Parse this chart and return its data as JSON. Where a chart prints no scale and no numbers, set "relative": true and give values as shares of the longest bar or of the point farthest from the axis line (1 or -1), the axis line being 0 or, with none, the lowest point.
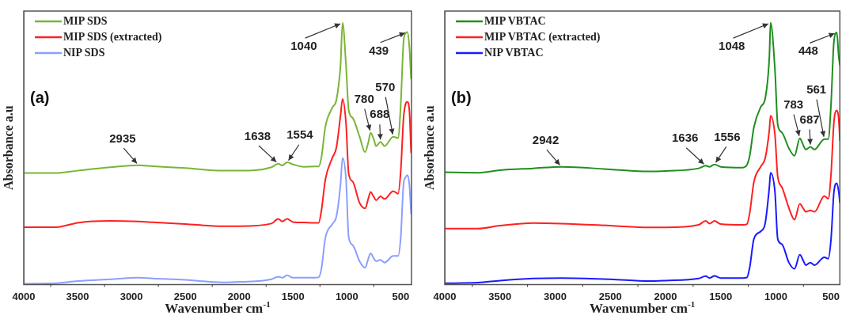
{
  "chart_data": [
    {
      "type": "line",
      "relative": true,
      "xlabel": "Wavenumber cm$^{-1}$",
      "ylabel": "Absorbance a.u",
      "xlim": [
        4000,
        400
      ],
      "xticks": [
        4000,
        3500,
        3000,
        2500,
        2000,
        1500,
        1000,
        500
      ],
      "legend": "top left",
      "grid": false,
      "tick_labels": "x",
      "marker": "none",
      "line_style": "solid",
      "x": [
        4000,
        3700,
        3500,
        3200,
        2935,
        2800,
        2500,
        2150,
        2000,
        1700,
        1638,
        1600,
        1554,
        1500,
        1400,
        1300,
        1262,
        1237,
        1199,
        1135,
        1097,
        1059,
        1040,
        1008,
        983,
        945,
        882,
        831,
        800,
        780,
        750,
        729,
        688,
        650,
        570,
        525,
        500,
        474,
        455,
        439,
        420,
        404
      ],
      "series": [
        {
          "name": "MIP SDS",
          "color": "#7ab535",
          "values": [
            0.426,
            0.426,
            0.435,
            0.448,
            0.456,
            0.452,
            0.445,
            0.435,
            0.435,
            0.448,
            0.462,
            0.455,
            0.467,
            0.459,
            0.45,
            0.451,
            0.451,
            0.484,
            0.605,
            0.676,
            0.706,
            0.838,
            1,
            0.838,
            0.666,
            0.636,
            0.565,
            0.506,
            0.545,
            0.58,
            0.555,
            0.529,
            0.545,
            0.529,
            0.565,
            0.56,
            0.686,
            0.929,
            0.96,
            0.965,
            0.909,
            0.787
          ]
        },
        {
          "name": "MIP SDS (extracted)",
          "color": "#ff2020",
          "values": [
            0.219,
            0.219,
            0.236,
            0.243,
            0.241,
            0.238,
            0.231,
            0.223,
            0.223,
            0.233,
            0.251,
            0.241,
            0.251,
            0.239,
            0.237,
            0.236,
            0.236,
            0.281,
            0.403,
            0.484,
            0.524,
            0.646,
            0.709,
            0.615,
            0.423,
            0.393,
            0.312,
            0.291,
            0.33,
            0.354,
            0.335,
            0.322,
            0.337,
            0.327,
            0.357,
            0.347,
            0.433,
            0.636,
            0.69,
            0.698,
            0.666,
            0.504
          ]
        },
        {
          "name": "NIP SDS",
          "color": "#8c9eff",
          "values": [
            0.003,
            0.005,
            0.013,
            0.02,
            0.026,
            0.023,
            0.018,
            0.008,
            0.01,
            0.02,
            0.03,
            0.026,
            0.035,
            0.026,
            0.026,
            0.026,
            0.028,
            0.059,
            0.18,
            0.231,
            0.261,
            0.383,
            0.484,
            0.403,
            0.18,
            0.15,
            0.089,
            0.064,
            0.1,
            0.119,
            0.1,
            0.089,
            0.094,
            0.084,
            0.109,
            0.109,
            0.18,
            0.383,
            0.41,
            0.418,
            0.383,
            0.271
          ]
        }
      ],
      "annotations": [
        "(a)",
        {
          "text": "1040",
          "x": 1040,
          "y": 1
        },
        {
          "text": "439",
          "x": 439,
          "y": 0.965
        },
        {
          "text": "780",
          "x": 780,
          "y": 0.58
        },
        {
          "text": "688",
          "x": 688,
          "y": 0.545
        },
        {
          "text": "570",
          "x": 570,
          "y": 0.565
        },
        {
          "text": "1638",
          "x": 1638,
          "y": 0.462
        },
        {
          "text": "1554",
          "x": 1554,
          "y": 0.467
        },
        {
          "text": "2935",
          "x": 2935,
          "y": 0.456
        }
      ]
    },
    {
      "type": "line",
      "relative": true,
      "xlabel": "Wavenumber cm$^{-1}$",
      "ylabel": "Absorbance a.u",
      "xlim": [
        4000,
        420
      ],
      "xticks": [
        4000,
        3500,
        3000,
        2500,
        2000,
        1500,
        1000,
        500
      ],
      "legend": "top left",
      "grid": false,
      "tick_labels": "x",
      "marker": "none",
      "line_style": "solid",
      "x": [
        4000,
        3700,
        3500,
        3200,
        2942,
        2500,
        2150,
        2000,
        1700,
        1636,
        1600,
        1556,
        1500,
        1300,
        1262,
        1237,
        1199,
        1135,
        1097,
        1059,
        1048,
        1008,
        983,
        945,
        882,
        831,
        783,
        750,
        729,
        687,
        650,
        561,
        525,
        500,
        474,
        448,
        430,
        420
      ],
      "series": [
        {
          "name": "MIP VBTAC",
          "color": "#1f8f1f",
          "values": [
            0.429,
            0.427,
            0.437,
            0.444,
            0.45,
            0.44,
            0.432,
            0.434,
            0.444,
            0.454,
            0.45,
            0.459,
            0.45,
            0.447,
            0.457,
            0.492,
            0.601,
            0.68,
            0.71,
            0.869,
            1,
            0.819,
            0.611,
            0.581,
            0.521,
            0.492,
            0.559,
            0.531,
            0.516,
            0.526,
            0.516,
            0.556,
            0.556,
            0.69,
            0.928,
            0.963,
            0.869,
            0.839
          ]
        },
        {
          "name": "MIP VBTAC (extracted)",
          "color": "#ff2020",
          "values": [
            0.214,
            0.214,
            0.225,
            0.235,
            0.233,
            0.225,
            0.218,
            0.218,
            0.228,
            0.243,
            0.233,
            0.243,
            0.231,
            0.228,
            0.231,
            0.273,
            0.392,
            0.452,
            0.482,
            0.591,
            0.645,
            0.571,
            0.412,
            0.372,
            0.293,
            0.248,
            0.308,
            0.29,
            0.278,
            0.283,
            0.278,
            0.338,
            0.328,
            0.422,
            0.621,
            0.665,
            0.631,
            0.551
          ]
        },
        {
          "name": "NIP VBTAC",
          "color": "#1a1aff",
          "values": [
            0.005,
            0.007,
            0.015,
            0.023,
            0.025,
            0.02,
            0.013,
            0.015,
            0.023,
            0.032,
            0.025,
            0.033,
            0.025,
            0.025,
            0.027,
            0.065,
            0.174,
            0.204,
            0.233,
            0.372,
            0.427,
            0.353,
            0.174,
            0.154,
            0.084,
            0.06,
            0.114,
            0.09,
            0.074,
            0.084,
            0.074,
            0.104,
            0.099,
            0.174,
            0.353,
            0.387,
            0.353,
            0.313
          ]
        }
      ],
      "annotations": [
        "(b)",
        {
          "text": "1048",
          "x": 1048,
          "y": 1
        },
        {
          "text": "448",
          "x": 448,
          "y": 0.963
        },
        {
          "text": "783",
          "x": 783,
          "y": 0.559
        },
        {
          "text": "687",
          "x": 687,
          "y": 0.526
        },
        {
          "text": "561",
          "x": 561,
          "y": 0.556
        },
        {
          "text": "1636",
          "x": 1636,
          "y": 0.454
        },
        {
          "text": "1556",
          "x": 1556,
          "y": 0.459
        },
        {
          "text": "2942",
          "x": 2942,
          "y": 0.45
        }
      ]
    }
  ]
}
